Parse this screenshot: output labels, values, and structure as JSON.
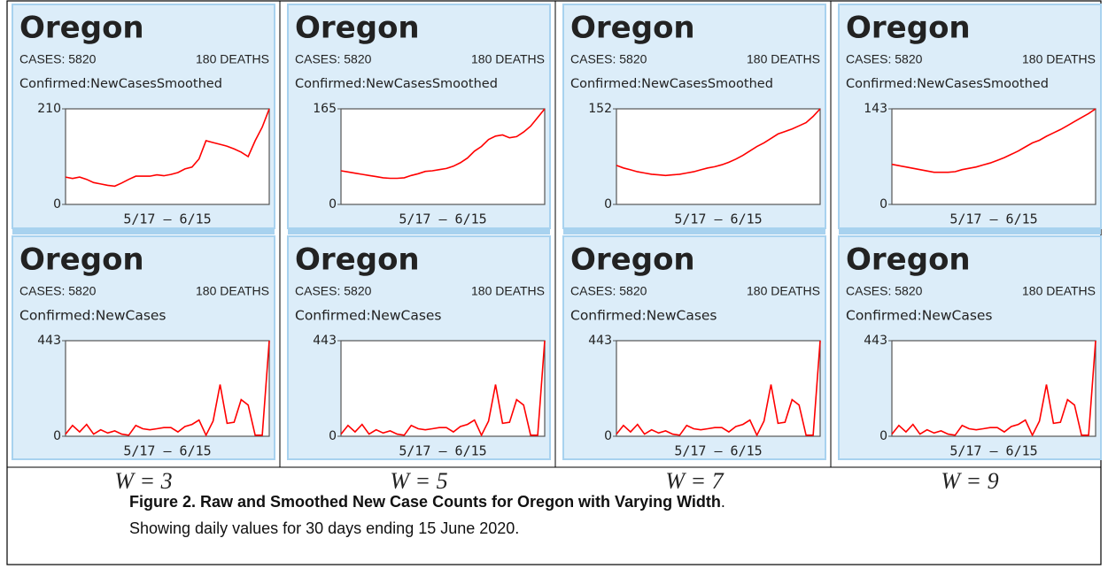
{
  "chart_data": [
    {
      "type": "line",
      "title": "Oregon",
      "cases": "CASES: 5820",
      "deaths": "180 DEATHS",
      "metric": "Confirmed:NewCasesSmoothed",
      "x_label": "5/17 – 6/15",
      "color": "#ff0000",
      "ylim": [
        0,
        210
      ],
      "yticks": [
        0,
        210
      ],
      "values": [
        60,
        57,
        60,
        55,
        48,
        45,
        42,
        40,
        47,
        55,
        62,
        62,
        62,
        65,
        63,
        66,
        70,
        78,
        82,
        100,
        140,
        136,
        132,
        128,
        122,
        115,
        105,
        140,
        170,
        210
      ]
    },
    {
      "type": "line",
      "title": "Oregon",
      "cases": "CASES: 5820",
      "deaths": "180 DEATHS",
      "metric": "Confirmed:NewCasesSmoothed",
      "x_label": "5/17 – 6/15",
      "color": "#ff0000",
      "ylim": [
        0,
        165
      ],
      "yticks": [
        0,
        165
      ],
      "values": [
        58,
        56,
        54,
        52,
        50,
        48,
        46,
        45,
        45,
        46,
        50,
        53,
        57,
        58,
        60,
        62,
        66,
        72,
        80,
        92,
        100,
        112,
        118,
        120,
        115,
        117,
        125,
        135,
        150,
        165
      ]
    },
    {
      "type": "line",
      "title": "Oregon",
      "cases": "CASES: 5820",
      "deaths": "180 DEATHS",
      "metric": "Confirmed:NewCasesSmoothed",
      "x_label": "5/17 – 6/15",
      "color": "#ff0000",
      "ylim": [
        0,
        152
      ],
      "yticks": [
        0,
        152
      ],
      "values": [
        62,
        58,
        55,
        52,
        50,
        48,
        47,
        46,
        47,
        48,
        50,
        52,
        55,
        58,
        60,
        63,
        67,
        72,
        78,
        85,
        92,
        98,
        105,
        112,
        116,
        120,
        125,
        130,
        140,
        152
      ]
    },
    {
      "type": "line",
      "title": "Oregon",
      "cases": "CASES: 5820",
      "deaths": "180 DEATHS",
      "metric": "Confirmed:NewCasesSmoothed",
      "x_label": "5/17 – 6/15",
      "color": "#ff0000",
      "ylim": [
        0,
        143
      ],
      "yticks": [
        0,
        143
      ],
      "values": [
        60,
        58,
        56,
        54,
        52,
        50,
        48,
        48,
        48,
        49,
        52,
        54,
        56,
        59,
        62,
        66,
        70,
        75,
        80,
        86,
        92,
        96,
        102,
        107,
        112,
        118,
        124,
        130,
        136,
        143
      ]
    },
    {
      "type": "line",
      "title": "Oregon",
      "cases": "CASES: 5820",
      "deaths": "180 DEATHS",
      "metric": "Confirmed:NewCases",
      "x_label": "5/17 – 6/15",
      "color": "#ff0000",
      "ylim": [
        0,
        443
      ],
      "yticks": [
        0,
        443
      ],
      "values": [
        10,
        50,
        20,
        55,
        10,
        30,
        15,
        25,
        10,
        5,
        50,
        35,
        30,
        35,
        40,
        40,
        20,
        45,
        55,
        75,
        5,
        70,
        240,
        60,
        65,
        170,
        145,
        5,
        5,
        443
      ]
    },
    {
      "type": "line",
      "title": "Oregon",
      "cases": "CASES: 5820",
      "deaths": "180 DEATHS",
      "metric": "Confirmed:NewCases",
      "x_label": "5/17 – 6/15",
      "color": "#ff0000",
      "ylim": [
        0,
        443
      ],
      "yticks": [
        0,
        443
      ],
      "values": [
        10,
        50,
        20,
        55,
        10,
        30,
        15,
        25,
        10,
        5,
        50,
        35,
        30,
        35,
        40,
        40,
        20,
        45,
        55,
        75,
        5,
        70,
        240,
        60,
        65,
        170,
        145,
        5,
        5,
        443
      ]
    },
    {
      "type": "line",
      "title": "Oregon",
      "cases": "CASES: 5820",
      "deaths": "180 DEATHS",
      "metric": "Confirmed:NewCases",
      "x_label": "5/17 – 6/15",
      "color": "#ff0000",
      "ylim": [
        0,
        443
      ],
      "yticks": [
        0,
        443
      ],
      "values": [
        10,
        50,
        20,
        55,
        10,
        30,
        15,
        25,
        10,
        5,
        50,
        35,
        30,
        35,
        40,
        40,
        20,
        45,
        55,
        75,
        5,
        70,
        240,
        60,
        65,
        170,
        145,
        5,
        5,
        443
      ]
    },
    {
      "type": "line",
      "title": "Oregon",
      "cases": "CASES: 5820",
      "deaths": "180 DEATHS",
      "metric": "Confirmed:NewCases",
      "x_label": "5/17 – 6/15",
      "color": "#ff0000",
      "ylim": [
        0,
        443
      ],
      "yticks": [
        0,
        443
      ],
      "values": [
        10,
        50,
        20,
        55,
        10,
        30,
        15,
        25,
        10,
        5,
        50,
        35,
        30,
        35,
        40,
        40,
        20,
        45,
        55,
        75,
        5,
        70,
        240,
        60,
        65,
        170,
        145,
        5,
        5,
        443
      ]
    }
  ],
  "panels": [
    "W = 3",
    "W = 5",
    "W = 7",
    "W = 9"
  ],
  "caption": {
    "bold": "Figure 2.  Raw and Smoothed New Case Counts for Oregon with Varying Width",
    "text": ".  Showing daily values for 30 days ending 15 June 2020."
  }
}
